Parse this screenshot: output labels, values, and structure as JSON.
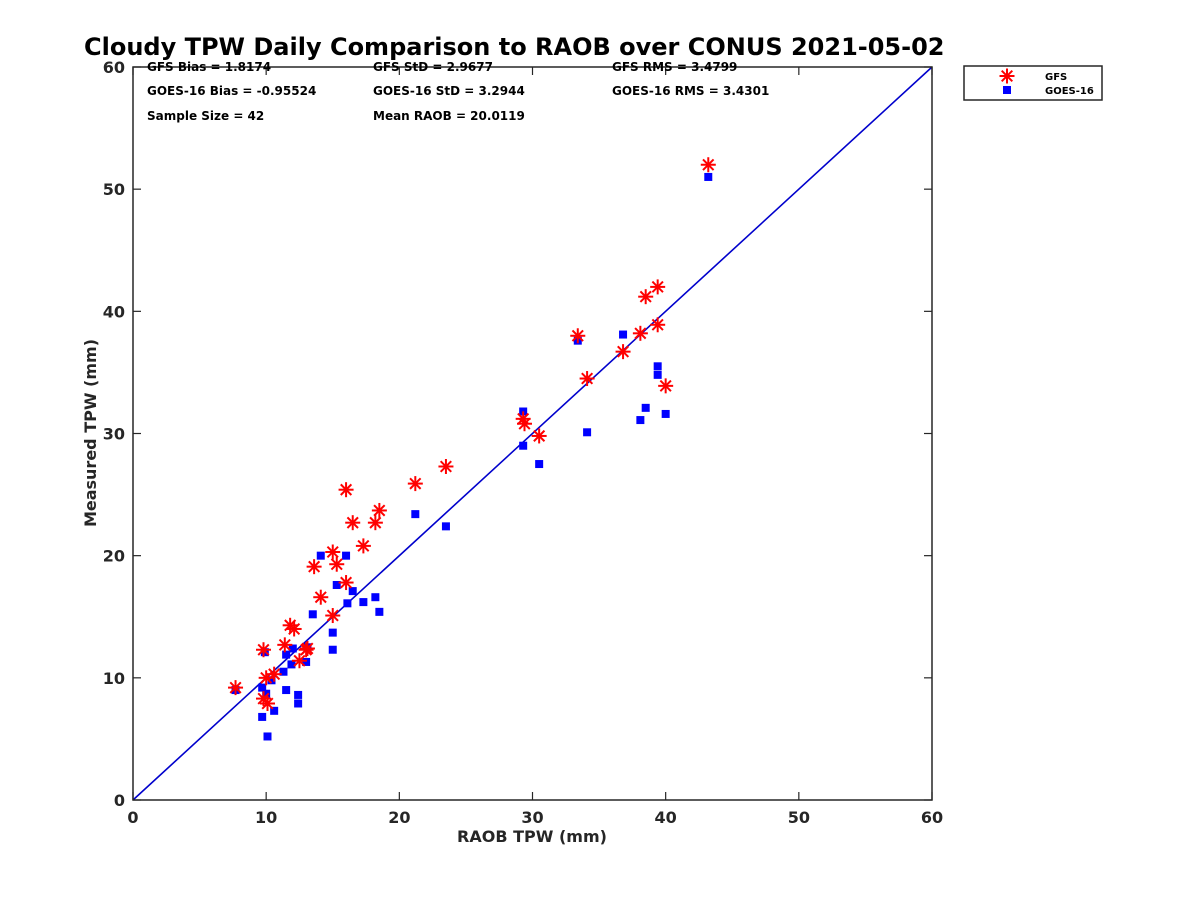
{
  "chart_data": {
    "type": "scatter",
    "title": "Cloudy TPW Daily Comparison to RAOB over CONUS 2021-05-02",
    "xlabel": "RAOB TPW (mm)",
    "ylabel": "Measured TPW (mm)",
    "xlim": [
      0,
      60
    ],
    "ylim": [
      0,
      60
    ],
    "xticks": [
      "0",
      "10",
      "20",
      "30",
      "40",
      "50",
      "60"
    ],
    "yticks": [
      "0",
      "10",
      "20",
      "30",
      "40",
      "50",
      "60"
    ],
    "grid": false,
    "legend_position": "outside-top-right",
    "reference_line": {
      "x": [
        0,
        60
      ],
      "y": [
        0,
        60
      ],
      "color": "#0000cc"
    },
    "stats": [
      "GFS Bias = 1.8174",
      "GFS StD = 2.9677",
      "GFS RMS = 3.4799",
      "GOES-16 Bias = -0.95524",
      "GOES-16 StD = 3.2944",
      "GOES-16 RMS = 3.4301",
      "Sample Size = 42",
      "Mean RAOB = 20.0119"
    ],
    "series": [
      {
        "name": "GFS",
        "marker": "asterisk",
        "color": "#ff0000",
        "points": [
          [
            7.7,
            9.2
          ],
          [
            9.8,
            12.3
          ],
          [
            9.8,
            8.3
          ],
          [
            10.0,
            10.0
          ],
          [
            10.1,
            7.9
          ],
          [
            10.6,
            10.3
          ],
          [
            11.4,
            12.7
          ],
          [
            11.8,
            14.3
          ],
          [
            12.1,
            14.0
          ],
          [
            12.5,
            11.4
          ],
          [
            13.0,
            12.3
          ],
          [
            13.1,
            12.4
          ],
          [
            13.6,
            19.1
          ],
          [
            14.1,
            16.6
          ],
          [
            15.0,
            15.1
          ],
          [
            15.0,
            20.3
          ],
          [
            15.3,
            19.3
          ],
          [
            16.0,
            17.8
          ],
          [
            16.0,
            25.4
          ],
          [
            16.5,
            22.7
          ],
          [
            17.3,
            20.8
          ],
          [
            18.2,
            22.7
          ],
          [
            18.5,
            23.7
          ],
          [
            21.2,
            25.9
          ],
          [
            23.5,
            27.3
          ],
          [
            29.3,
            31.2
          ],
          [
            29.4,
            30.8
          ],
          [
            30.5,
            29.8
          ],
          [
            33.4,
            38.0
          ],
          [
            34.1,
            34.5
          ],
          [
            36.8,
            36.7
          ],
          [
            38.1,
            38.2
          ],
          [
            38.5,
            41.2
          ],
          [
            39.4,
            42.0
          ],
          [
            39.4,
            38.9
          ],
          [
            40.0,
            33.9
          ],
          [
            43.2,
            52.0
          ]
        ]
      },
      {
        "name": "GOES-16",
        "marker": "square",
        "color": "#0000ff",
        "points": [
          [
            7.7,
            9.0
          ],
          [
            9.7,
            9.2
          ],
          [
            9.7,
            6.8
          ],
          [
            9.9,
            12.1
          ],
          [
            10.0,
            8.7
          ],
          [
            10.1,
            5.2
          ],
          [
            10.4,
            9.8
          ],
          [
            10.6,
            7.3
          ],
          [
            11.3,
            10.5
          ],
          [
            11.5,
            11.9
          ],
          [
            11.5,
            9.0
          ],
          [
            11.9,
            11.1
          ],
          [
            12.0,
            12.4
          ],
          [
            12.4,
            8.6
          ],
          [
            12.4,
            7.9
          ],
          [
            13.0,
            11.3
          ],
          [
            13.1,
            12.5
          ],
          [
            13.5,
            15.2
          ],
          [
            14.1,
            20.0
          ],
          [
            15.0,
            13.7
          ],
          [
            15.0,
            12.3
          ],
          [
            15.3,
            17.6
          ],
          [
            16.0,
            20.0
          ],
          [
            16.1,
            16.1
          ],
          [
            16.5,
            17.1
          ],
          [
            17.3,
            16.2
          ],
          [
            18.2,
            16.6
          ],
          [
            18.5,
            15.4
          ],
          [
            21.2,
            23.4
          ],
          [
            23.5,
            22.4
          ],
          [
            29.3,
            31.8
          ],
          [
            29.3,
            29.0
          ],
          [
            30.5,
            27.5
          ],
          [
            33.4,
            37.6
          ],
          [
            34.1,
            30.1
          ],
          [
            36.8,
            38.1
          ],
          [
            38.1,
            31.1
          ],
          [
            38.5,
            32.1
          ],
          [
            39.4,
            35.5
          ],
          [
            39.4,
            34.8
          ],
          [
            40.0,
            31.6
          ],
          [
            43.2,
            51.0
          ]
        ]
      }
    ]
  }
}
